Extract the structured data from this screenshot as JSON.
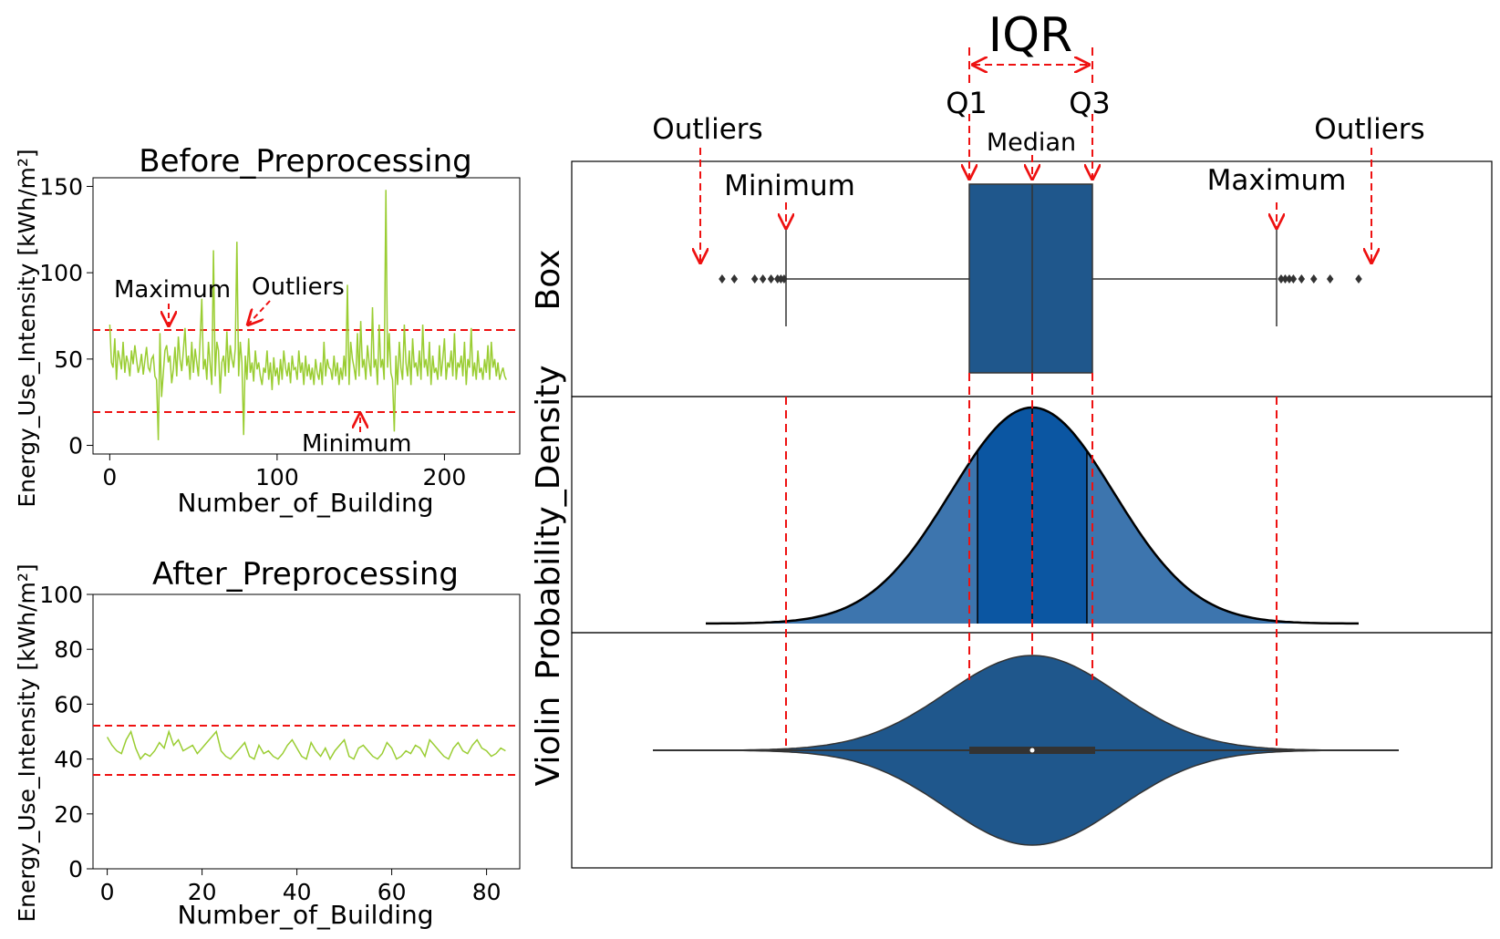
{
  "colors": {
    "line": "#9acd32",
    "dashed": "#ee1111",
    "box": "#1f578c",
    "kde_outer": "#3d75ae",
    "kde_inner": "#0b56a2",
    "axis": "#000000"
  },
  "chart_data": [
    {
      "type": "line",
      "title": "Before_Preprocessing",
      "xlabel": "Number_of_Building",
      "ylabel": "Energy_Use_Intensity [kWh/m²]",
      "xlim": [
        -10,
        245
      ],
      "ylim": [
        -5,
        155
      ],
      "xticks": [
        "0",
        "100",
        "200"
      ],
      "yticks": [
        "0",
        "50",
        "100",
        "150"
      ],
      "reference_lines": [
        69,
        20
      ],
      "annotations": {
        "maximum": "Maximum",
        "outliers": "Outliers",
        "minimum": "Minimum"
      },
      "series": [
        {
          "name": "Energy_Use_Intensity",
          "values": [
            70,
            48,
            45,
            62,
            38,
            55,
            50,
            44,
            60,
            42,
            52,
            48,
            40,
            55,
            47,
            58,
            50,
            42,
            46,
            53,
            41,
            49,
            57,
            45,
            43,
            50,
            52,
            40,
            38,
            3,
            65,
            28,
            42,
            55,
            58,
            48,
            52,
            36,
            44,
            57,
            40,
            63,
            50,
            43,
            55,
            68,
            46,
            52,
            38,
            60,
            42,
            56,
            48,
            40,
            62,
            85,
            44,
            50,
            38,
            60,
            47,
            35,
            113,
            40,
            60,
            55,
            30,
            48,
            52,
            40,
            66,
            42,
            58,
            50,
            45,
            56,
            118,
            40,
            60,
            48,
            6,
            52,
            38,
            62,
            42,
            48,
            37,
            55,
            44,
            48,
            40,
            35,
            45,
            42,
            55,
            38,
            48,
            32,
            51,
            40,
            45,
            35,
            50,
            38,
            55,
            45,
            40,
            48,
            36,
            52,
            44,
            45,
            38,
            55,
            42,
            48,
            35,
            52,
            40,
            47,
            38,
            45,
            35,
            50,
            42,
            38,
            48,
            35,
            60,
            40,
            50,
            45,
            44,
            38,
            52,
            40,
            48,
            35,
            45,
            38,
            52,
            40,
            93,
            35,
            60,
            50,
            45,
            38,
            65,
            40,
            72,
            45,
            50,
            38,
            58,
            48,
            40,
            80,
            45,
            50,
            35,
            70,
            45,
            50,
            38,
            148,
            45,
            65,
            42,
            38,
            8,
            52,
            35,
            60,
            45,
            38,
            70,
            48,
            40,
            55,
            35,
            62,
            45,
            48,
            40,
            55,
            38,
            70,
            45,
            50,
            40,
            60,
            35,
            52,
            42,
            45,
            38,
            58,
            40,
            50,
            62,
            38,
            48,
            45,
            55,
            40,
            65,
            38,
            48,
            45,
            52,
            40,
            60,
            35,
            50,
            45,
            68,
            40,
            48,
            38,
            55,
            42,
            45,
            38,
            50,
            42,
            58,
            38,
            60,
            45,
            50,
            40,
            48,
            38,
            42,
            45,
            40,
            38
          ]
        }
      ]
    },
    {
      "type": "line",
      "title": "After_Preprocessing",
      "xlabel": "Number_of_Building",
      "ylabel": "Energy_Use_Intensity [kWh/m²]",
      "xlim": [
        -3,
        87
      ],
      "ylim": [
        0,
        100
      ],
      "xticks": [
        "0",
        "20",
        "40",
        "60",
        "80"
      ],
      "yticks": [
        "0",
        "20",
        "40",
        "60",
        "80",
        "100"
      ],
      "reference_lines": [
        52,
        34
      ],
      "series": [
        {
          "name": "Energy_Use_Intensity",
          "values": [
            48,
            45,
            43,
            42,
            47,
            50,
            44,
            40,
            42,
            41,
            43,
            46,
            44,
            50,
            45,
            47,
            43,
            44,
            45,
            42,
            44,
            46,
            48,
            50,
            43,
            41,
            40,
            42,
            44,
            46,
            41,
            40,
            45,
            42,
            43,
            41,
            40,
            42,
            45,
            47,
            44,
            41,
            40,
            46,
            43,
            41,
            44,
            40,
            43,
            45,
            47,
            41,
            40,
            44,
            45,
            43,
            41,
            40,
            42,
            46,
            44,
            40,
            41,
            43,
            42,
            45,
            44,
            41,
            47,
            45,
            43,
            41,
            40,
            44,
            46,
            43,
            42,
            45,
            47,
            44,
            43,
            41,
            42,
            44,
            43
          ]
        }
      ]
    },
    {
      "type": "box",
      "panel_label": "Box",
      "summary": {
        "minimum": -3.0,
        "q1": -0.67,
        "median": 0.0,
        "q3": 0.67,
        "maximum": 3.0
      },
      "outliers": [
        -3.8,
        -3.65,
        -3.4,
        -3.3,
        -3.2,
        -3.12,
        -3.08,
        -3.04,
        3.05,
        3.1,
        3.15,
        3.2,
        3.3,
        3.45,
        3.65,
        4.0
      ],
      "annotations": {
        "iqr": "IQR",
        "q1": "Q1",
        "q3": "Q3",
        "median": "Median",
        "minimum": "Minimum",
        "maximum": "Maximum",
        "outliers_left": "Outliers",
        "outliers_right": "Outliers"
      }
    },
    {
      "type": "area",
      "panel_label": "Probability_Density",
      "description": "normal density curve",
      "x_range": [
        -4.0,
        4.0
      ],
      "mean": 0.0,
      "std": 1.0
    },
    {
      "type": "violin",
      "panel_label": "Violin",
      "x_range": [
        -4.2,
        4.2
      ]
    }
  ]
}
